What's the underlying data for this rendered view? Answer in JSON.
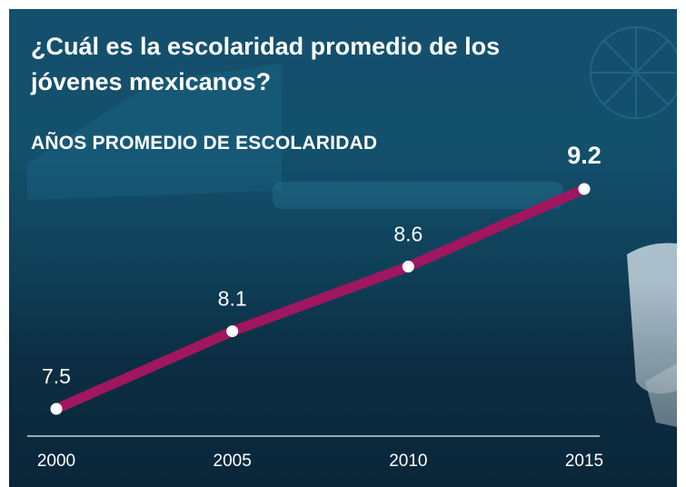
{
  "title": "¿Cuál es la escolaridad promedio de los jóvenes mexicanos?",
  "subtitle": "AÑOS PROMEDIO DE ESCOLARIDAD",
  "colors": {
    "line": "#a0165f",
    "point": "#ffffff",
    "axis": "#c9d6de",
    "background": "#13506c"
  },
  "chart_data": {
    "type": "line",
    "title": "¿Cuál es la escolaridad promedio de los jóvenes mexicanos?",
    "subtitle": "AÑOS PROMEDIO DE ESCOLARIDAD",
    "xlabel": "",
    "ylabel": "",
    "categories": [
      "2000",
      "2005",
      "2010",
      "2015"
    ],
    "values": [
      7.5,
      8.1,
      8.6,
      9.2
    ],
    "data_labels": [
      "7.5",
      "8.1",
      "8.6",
      "9.2"
    ],
    "ylim": [
      7.4,
      9.3
    ],
    "grid": false,
    "legend": "none"
  }
}
